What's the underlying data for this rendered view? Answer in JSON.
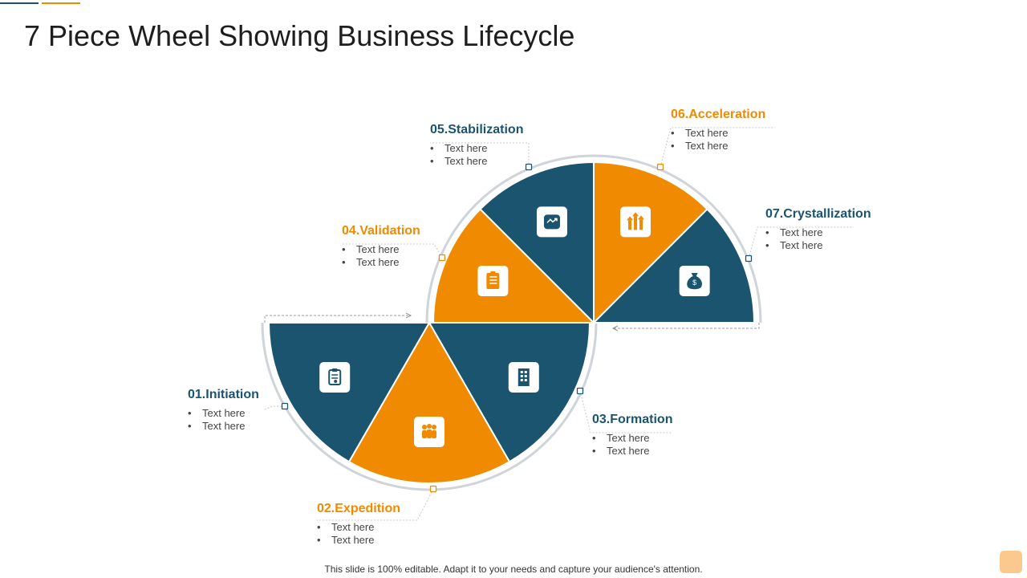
{
  "title": "7 Piece Wheel Showing Business Lifecycle",
  "colors": {
    "navy": "#1a546f",
    "orange": "#f08a00",
    "ring": "#cfd4d8",
    "text": "#444444"
  },
  "stages": [
    {
      "label": "01.Initiation",
      "color": "navy",
      "icon": "clipboard-icon",
      "bullets": [
        "Text here",
        "Text here"
      ]
    },
    {
      "label": "02.Expedition",
      "color": "orange",
      "icon": "team-icon",
      "bullets": [
        "Text here",
        "Text here"
      ]
    },
    {
      "label": "03.Formation",
      "color": "navy",
      "icon": "building-icon",
      "bullets": [
        "Text here",
        "Text here"
      ]
    },
    {
      "label": "04.Validation",
      "color": "orange",
      "icon": "checklist-icon",
      "bullets": [
        "Text here",
        "Text here"
      ]
    },
    {
      "label": "05.Stabilization",
      "color": "navy",
      "icon": "trend-arrow-icon",
      "bullets": [
        "Text here",
        "Text here"
      ]
    },
    {
      "label": "06.Acceleration",
      "color": "orange",
      "icon": "growth-arrows-icon",
      "bullets": [
        "Text here",
        "Text here"
      ]
    },
    {
      "label": "07.Crystallization",
      "color": "navy",
      "icon": "money-bag-icon",
      "bullets": [
        "Text here",
        "Text here"
      ]
    }
  ],
  "footer": "This slide is 100% editable. Adapt it to your needs and capture your audience's attention."
}
